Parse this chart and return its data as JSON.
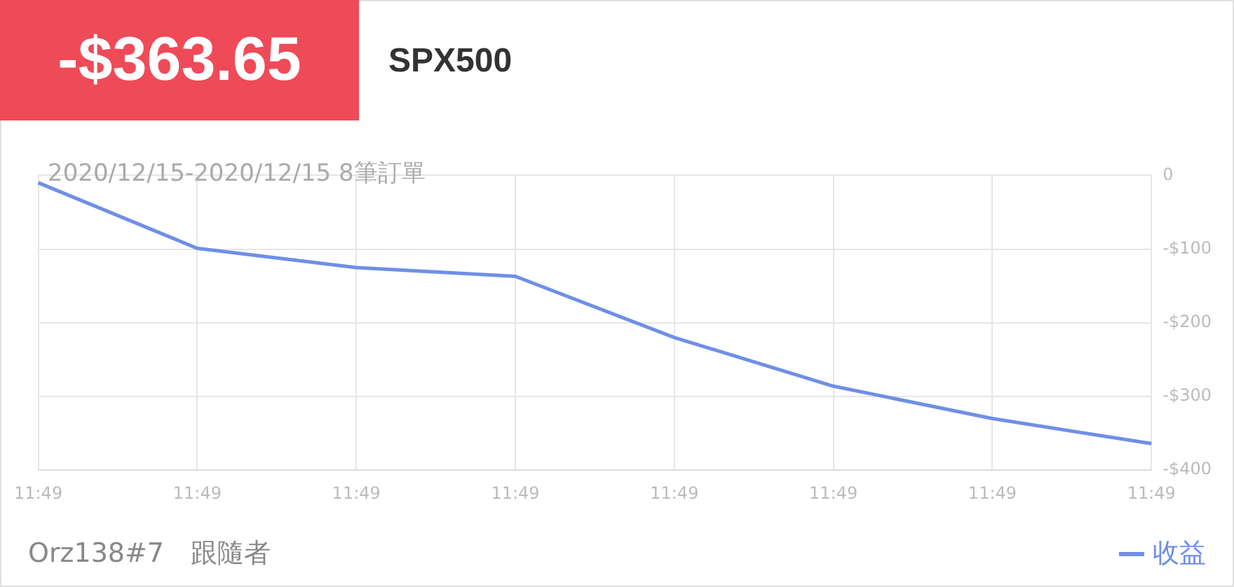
{
  "chart_data": {
    "type": "line",
    "title": "-$363.65",
    "subtitle": "SPX500",
    "annotations": [
      "2020/12/15-2020/12/15 8筆訂單",
      "Orz138#7　跟隨者"
    ],
    "categories": [
      "11:49",
      "11:49",
      "11:49",
      "11:49",
      "11:49",
      "11:49",
      "11:49",
      "11:49"
    ],
    "series": [
      {
        "name": "收益",
        "color": "#6f8fe6",
        "values": [
          -10,
          -99,
          -125,
          -137,
          -220,
          -286,
          -330,
          -364
        ]
      }
    ],
    "ylim": [
      -400,
      0
    ],
    "yticks": [
      {
        "value": -400,
        "label": "-$400"
      },
      {
        "value": -300,
        "label": "-$300"
      },
      {
        "value": -200,
        "label": "-$200"
      },
      {
        "value": -100,
        "label": "-$100"
      },
      0
    ],
    "grid": true,
    "legend": "bottom right",
    "marker": "none",
    "line_style": "solid"
  }
}
